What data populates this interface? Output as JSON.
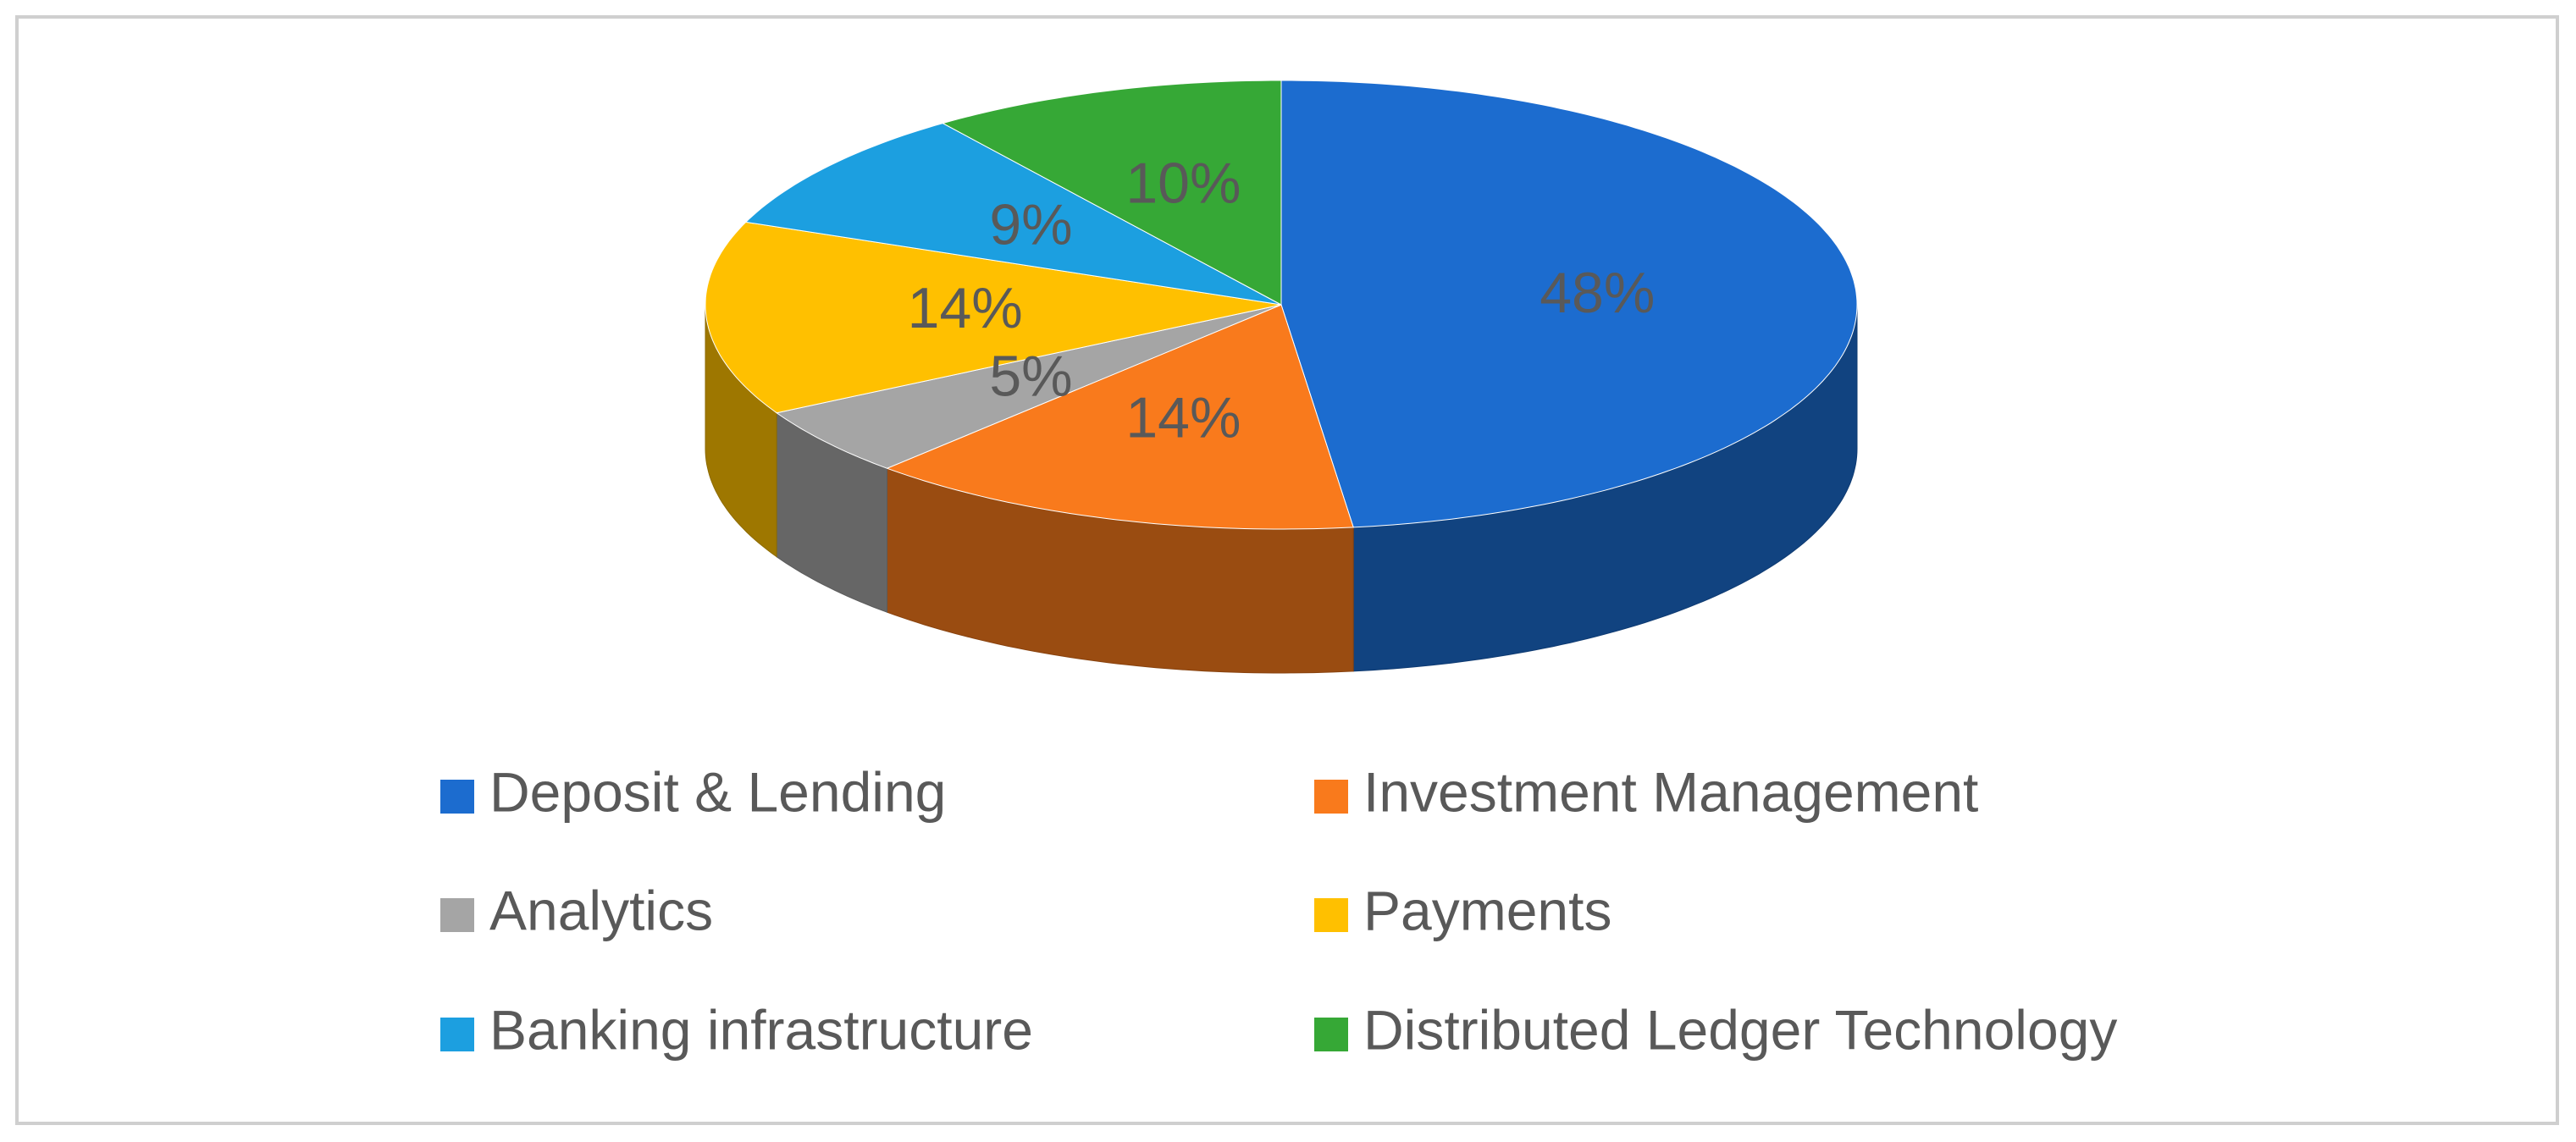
{
  "chart_data": {
    "type": "pie3d",
    "categories": [
      "Deposit & Lending",
      "Investment Management",
      "Analytics",
      "Payments",
      "Banking infrastructure",
      "Distributed Ledger Technology"
    ],
    "values": [
      48,
      14,
      5,
      14,
      9,
      10
    ],
    "value_labels": [
      "48%",
      "14%",
      "5%",
      "14%",
      "9%",
      "10%"
    ],
    "colors": [
      "#1c6ccf",
      "#f97a1c",
      "#a5a5a5",
      "#ffc000",
      "#1c9fe0",
      "#36a836"
    ]
  }
}
